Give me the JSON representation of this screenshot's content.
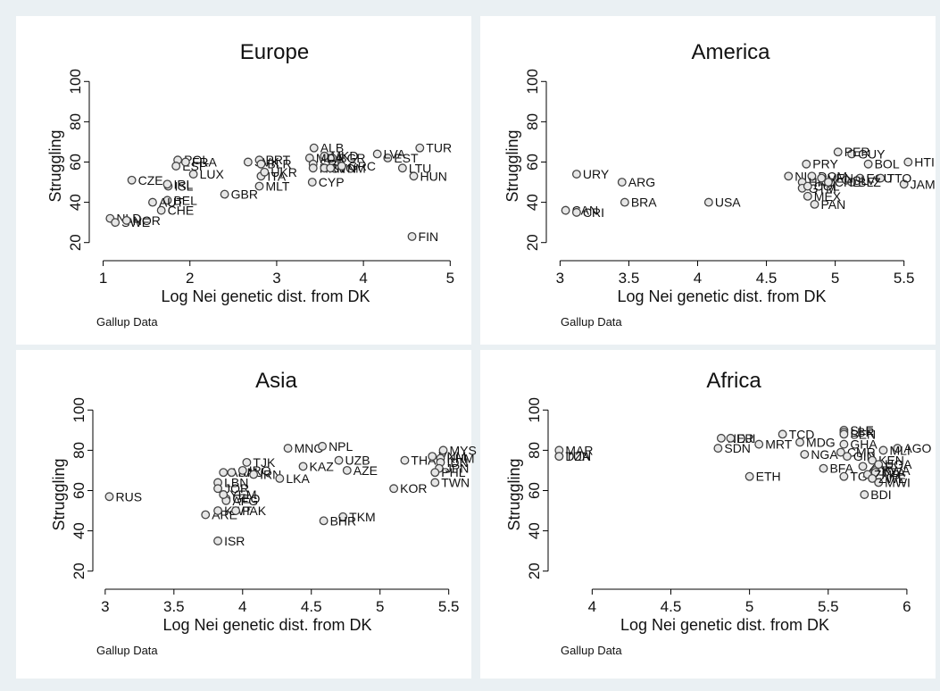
{
  "chart_data": [
    {
      "type": "scatter",
      "title": "Europe",
      "x_label": "Log Nei genetic dist. from DK",
      "y_label": "Struggling",
      "note": "Gallup Data",
      "xlim": [
        0.84,
        5.11
      ],
      "ylim": [
        11,
        105
      ],
      "xticks": [
        1,
        2,
        3,
        4,
        5
      ],
      "yticks": [
        20,
        40,
        60,
        80,
        100
      ],
      "labels": [
        "TUR",
        "FIN",
        "HUN",
        "LTU",
        "EST",
        "LVA",
        "ALB",
        "MKD",
        "BGR",
        "MDA",
        "SRB",
        "HRV",
        "SVN",
        "ROM",
        "GRC",
        "CYP",
        "MLT",
        "GBR",
        "LUX",
        "CZE",
        "ISL",
        "IRL",
        "BEL",
        "AUT",
        "CHE",
        "NLD",
        "SWE",
        "NOR",
        "POL",
        "ESP",
        "FRA",
        "SVK",
        "PRT",
        "BLR",
        "ITA",
        "UKR"
      ],
      "x": [
        4.65,
        4.56,
        4.58,
        4.45,
        4.28,
        4.16,
        3.43,
        3.55,
        3.64,
        3.38,
        3.42,
        3.42,
        3.55,
        3.62,
        3.75,
        3.41,
        2.8,
        2.4,
        2.04,
        1.33,
        1.75,
        1.74,
        1.74,
        1.57,
        1.67,
        1.08,
        1.14,
        1.27,
        1.86,
        1.84,
        1.95,
        2.67,
        2.8,
        2.82,
        2.82,
        2.86
      ],
      "y": [
        67,
        23,
        53,
        57,
        62,
        64,
        67,
        63,
        62,
        62,
        59,
        57,
        57,
        57,
        58,
        50,
        48,
        44,
        54,
        51,
        48,
        49,
        41,
        40,
        36,
        32,
        30,
        31,
        61,
        58,
        60,
        60,
        61,
        59,
        53,
        55
      ]
    },
    {
      "type": "scatter",
      "title": "America",
      "x_label": "Log Nei genetic dist. from DK",
      "y_label": "Struggling",
      "note": "Gallup Data",
      "xlim": [
        2.9,
        5.58
      ],
      "ylim": [
        11,
        105
      ],
      "xticks": [
        3,
        3.5,
        4,
        4.5,
        5,
        5.5
      ],
      "yticks": [
        20,
        40,
        60,
        80,
        100
      ],
      "labels": [
        "HTI",
        "JAM",
        "BOL",
        "GUY",
        "PER",
        "PRY",
        "ECU",
        "TTO",
        "SLV",
        "BLZ",
        "NIC",
        "DOM",
        "HND",
        "GTM",
        "COL",
        "VEN",
        "CHL",
        "MEX",
        "PAN",
        "USA",
        "BRA",
        "ARG",
        "URY",
        "CAN",
        "CRI"
      ],
      "x": [
        5.53,
        5.5,
        5.24,
        5.12,
        5.02,
        4.79,
        5.18,
        5.33,
        5.08,
        5.12,
        4.66,
        4.83,
        4.76,
        4.76,
        4.8,
        4.9,
        4.95,
        4.8,
        4.85,
        4.08,
        3.47,
        3.45,
        3.12,
        3.04,
        3.12
      ],
      "y": [
        60,
        49,
        59,
        64,
        65,
        59,
        52,
        52,
        51,
        50,
        53,
        53,
        50,
        47,
        48,
        52,
        50,
        43,
        39,
        40,
        40,
        50,
        54,
        36,
        35
      ]
    },
    {
      "type": "scatter",
      "title": "Asia",
      "x_label": "Log Nei genetic dist. from DK",
      "y_label": "Struggling",
      "note": "Gallup Data",
      "xlim": [
        2.91,
        5.58
      ],
      "ylim": [
        11,
        105
      ],
      "xticks": [
        3,
        3.5,
        4,
        4.5,
        5,
        5.5
      ],
      "yticks": [
        20,
        40,
        60,
        80,
        100
      ],
      "labels": [
        "RUS",
        "ISR",
        "ARE",
        "KWT",
        "PAK",
        "LBN",
        "JOR",
        "ARM",
        "SAU",
        "IRQ",
        "TJK",
        "IRN",
        "GEO",
        "AFG",
        "YEM",
        "LKA",
        "MNG",
        "NPL",
        "KAZ",
        "UZB",
        "AZE",
        "TKM",
        "BHR",
        "KOR",
        "THA",
        "MYS",
        "VNM",
        "KHM",
        "IDN",
        "JPN",
        "PHL",
        "TWN"
      ],
      "x": [
        3.03,
        3.82,
        3.73,
        3.82,
        3.95,
        3.82,
        3.82,
        3.86,
        3.92,
        4.0,
        4.03,
        4.08,
        3.88,
        3.88,
        3.86,
        4.27,
        4.33,
        4.58,
        4.44,
        4.7,
        4.76,
        4.73,
        4.59,
        5.1,
        5.18,
        5.46,
        5.38,
        5.44,
        5.44,
        5.43,
        5.4,
        5.4
      ],
      "y": [
        57,
        35,
        48,
        50,
        50,
        64,
        61,
        69,
        69,
        70,
        74,
        68,
        56,
        55,
        58,
        66,
        81,
        82,
        72,
        75,
        70,
        47,
        45,
        61,
        75,
        80,
        77,
        76,
        74,
        71,
        69,
        64
      ]
    },
    {
      "type": "scatter",
      "title": "Africa",
      "x_label": "Log Nei genetic dist. from DK",
      "y_label": "Struggling",
      "note": "Gallup Data",
      "xlim": [
        3.72,
        6.08
      ],
      "ylim": [
        11,
        105
      ],
      "xticks": [
        4,
        4.5,
        5,
        5.5,
        6
      ],
      "yticks": [
        20,
        40,
        60,
        80,
        100
      ],
      "labels": [
        "MAR",
        "TUN",
        "DZA",
        "NER",
        "DJI",
        "SDN",
        "MRT",
        "ETH",
        "TCD",
        "MDG",
        "NGA",
        "SLE",
        "LBR",
        "SEN",
        "GHA",
        "CMR",
        "GIN",
        "AGO",
        "MLI",
        "BFA",
        "ZAF",
        "TGO",
        "RWA",
        "KEN",
        "UGA",
        "TZA",
        "ZMB",
        "MWI",
        "ZWE",
        "BDI"
      ],
      "x": [
        3.79,
        3.79,
        3.79,
        4.82,
        4.88,
        4.8,
        5.06,
        5.0,
        5.21,
        5.32,
        5.35,
        5.6,
        5.6,
        5.6,
        5.6,
        5.58,
        5.62,
        5.94,
        5.85,
        5.47,
        5.72,
        5.6,
        5.8,
        5.78,
        5.82,
        5.8,
        5.75,
        5.82,
        5.78,
        5.73
      ],
      "y": [
        80,
        77,
        77,
        86,
        86,
        81,
        83,
        67,
        88,
        84,
        78,
        90,
        89,
        88,
        83,
        79,
        77,
        81,
        80,
        71,
        72,
        67,
        70,
        75,
        73,
        69,
        68,
        64,
        66,
        58
      ]
    }
  ]
}
